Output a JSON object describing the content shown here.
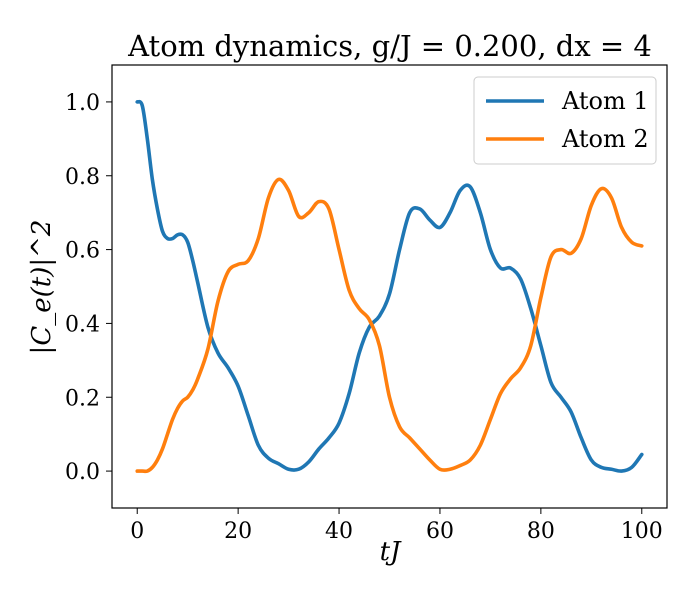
{
  "chart_data": {
    "type": "line",
    "title": "Atom dynamics, g/J = 0.200, dx = 4",
    "xlabel": "tJ",
    "ylabel": "|C_e(t)|^2",
    "xlim": [
      -5,
      105
    ],
    "ylim": [
      -0.1,
      1.1
    ],
    "xticks": [
      0,
      20,
      40,
      60,
      80,
      100
    ],
    "yticks": [
      0.0,
      0.2,
      0.4,
      0.6,
      0.8,
      1.0
    ],
    "xtick_labels": [
      "0",
      "20",
      "40",
      "60",
      "80",
      "100"
    ],
    "ytick_labels": [
      "0.0",
      "0.2",
      "0.4",
      "0.6",
      "0.8",
      "1.0"
    ],
    "grid": false,
    "legend_position": "top-right",
    "series": [
      {
        "name": "Atom 1",
        "color": "#1f77b4",
        "x": [
          0,
          1,
          2,
          3,
          4,
          5,
          6,
          7,
          8,
          9,
          10,
          11,
          12,
          14,
          16,
          18,
          20,
          22,
          24,
          26,
          28,
          30,
          32,
          34,
          36,
          38,
          40,
          42,
          44,
          46,
          48,
          50,
          52,
          54,
          56,
          58,
          60,
          62,
          64,
          66,
          68,
          70,
          72,
          74,
          76,
          78,
          80,
          82,
          84,
          86,
          88,
          90,
          92,
          94,
          96,
          98,
          100
        ],
        "values": [
          1.0,
          0.99,
          0.9,
          0.79,
          0.71,
          0.65,
          0.63,
          0.63,
          0.64,
          0.64,
          0.62,
          0.57,
          0.51,
          0.39,
          0.32,
          0.28,
          0.23,
          0.15,
          0.07,
          0.035,
          0.02,
          0.005,
          0.005,
          0.025,
          0.06,
          0.09,
          0.13,
          0.21,
          0.32,
          0.39,
          0.42,
          0.48,
          0.6,
          0.7,
          0.71,
          0.68,
          0.66,
          0.7,
          0.76,
          0.77,
          0.7,
          0.6,
          0.55,
          0.55,
          0.52,
          0.44,
          0.34,
          0.24,
          0.2,
          0.16,
          0.09,
          0.03,
          0.01,
          0.005,
          0.0,
          0.01,
          0.045
        ]
      },
      {
        "name": "Atom 2",
        "color": "#ff7f0e",
        "x": [
          0,
          1,
          2,
          3,
          4,
          5,
          6,
          7,
          8,
          9,
          10,
          11,
          12,
          14,
          16,
          18,
          20,
          22,
          24,
          26,
          28,
          30,
          32,
          34,
          36,
          38,
          40,
          42,
          44,
          46,
          48,
          50,
          52,
          54,
          56,
          58,
          60,
          62,
          64,
          66,
          68,
          70,
          72,
          74,
          76,
          78,
          80,
          82,
          84,
          86,
          88,
          90,
          92,
          94,
          96,
          98,
          100
        ],
        "values": [
          0.0,
          0.0,
          0.0,
          0.01,
          0.03,
          0.06,
          0.1,
          0.14,
          0.17,
          0.19,
          0.2,
          0.22,
          0.25,
          0.33,
          0.46,
          0.54,
          0.56,
          0.57,
          0.63,
          0.74,
          0.79,
          0.76,
          0.69,
          0.7,
          0.73,
          0.71,
          0.6,
          0.49,
          0.44,
          0.41,
          0.34,
          0.2,
          0.12,
          0.09,
          0.06,
          0.03,
          0.005,
          0.005,
          0.015,
          0.03,
          0.07,
          0.14,
          0.21,
          0.25,
          0.28,
          0.34,
          0.47,
          0.58,
          0.6,
          0.59,
          0.63,
          0.72,
          0.765,
          0.74,
          0.66,
          0.62,
          0.61
        ]
      }
    ]
  }
}
